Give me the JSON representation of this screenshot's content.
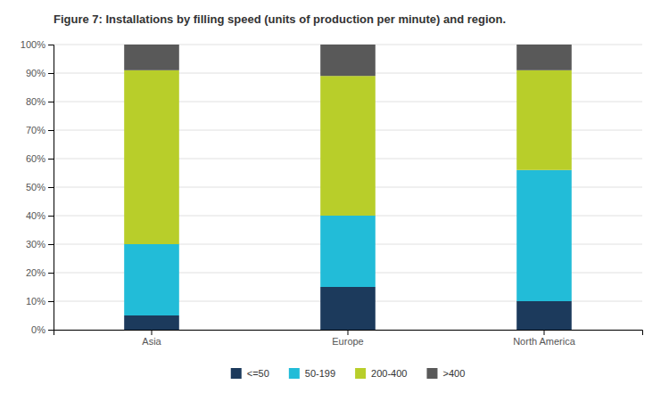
{
  "chart_data": {
    "type": "bar",
    "stacked": true,
    "title": "Figure 7: Installations by filling speed (units of production per minute) and region.",
    "categories": [
      "Asia",
      "Europe",
      "North America"
    ],
    "series": [
      {
        "name": "<=50",
        "color": "#1c3a5c",
        "values": [
          5,
          15,
          10
        ]
      },
      {
        "name": "50-199",
        "color": "#22bcd8",
        "values": [
          25,
          25,
          46
        ]
      },
      {
        "name": "200-400",
        "color": "#b8ce2a",
        "values": [
          61,
          49,
          35
        ]
      },
      {
        "name": ">400",
        "color": "#595959",
        "values": [
          9,
          11,
          9
        ]
      }
    ],
    "ylim": [
      0,
      100
    ],
    "yticks": [
      {
        "value": 0,
        "label": "0%"
      },
      {
        "value": 10,
        "label": "10%"
      },
      {
        "value": 20,
        "label": "20%"
      },
      {
        "value": 30,
        "label": "30%"
      },
      {
        "value": 40,
        "label": "40%"
      },
      {
        "value": 50,
        "label": "50%"
      },
      {
        "value": 60,
        "label": "60%"
      },
      {
        "value": 70,
        "label": "70%"
      },
      {
        "value": 80,
        "label": "80%"
      },
      {
        "value": 90,
        "label": "90%"
      },
      {
        "value": 100,
        "label": "100%"
      }
    ],
    "grid": true,
    "legend": "bottom"
  }
}
